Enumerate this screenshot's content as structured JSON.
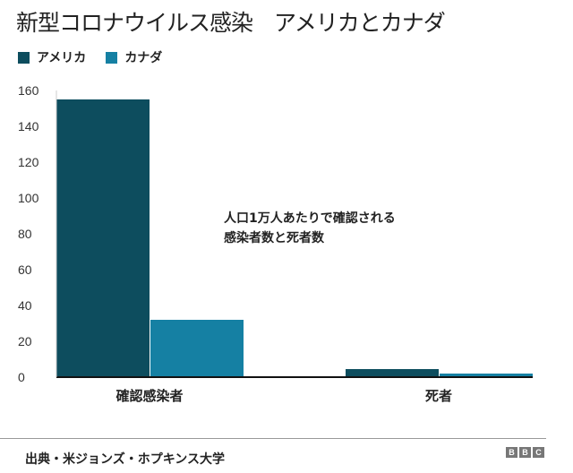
{
  "chart_data": {
    "type": "bar",
    "title": "新型コロナウイルス感染　アメリカとカナダ",
    "categories": [
      "確認感染者",
      "死者"
    ],
    "series": [
      {
        "name": "アメリカ",
        "color": "#0d4d5e",
        "values": [
          155,
          4.5
        ]
      },
      {
        "name": "カナダ",
        "color": "#1580a3",
        "values": [
          32,
          2
        ]
      }
    ],
    "ylim": [
      0,
      160
    ],
    "yticks": [
      0,
      20,
      40,
      60,
      80,
      100,
      120,
      140,
      160
    ],
    "grid": false,
    "legend": "top-left",
    "annotation": [
      "人口1万人あたりで確認される",
      "感染者数と死者数"
    ]
  },
  "footer": {
    "source": "出典・米ジョンズ・ホプキンス大学",
    "logo": [
      "B",
      "B",
      "C"
    ]
  }
}
